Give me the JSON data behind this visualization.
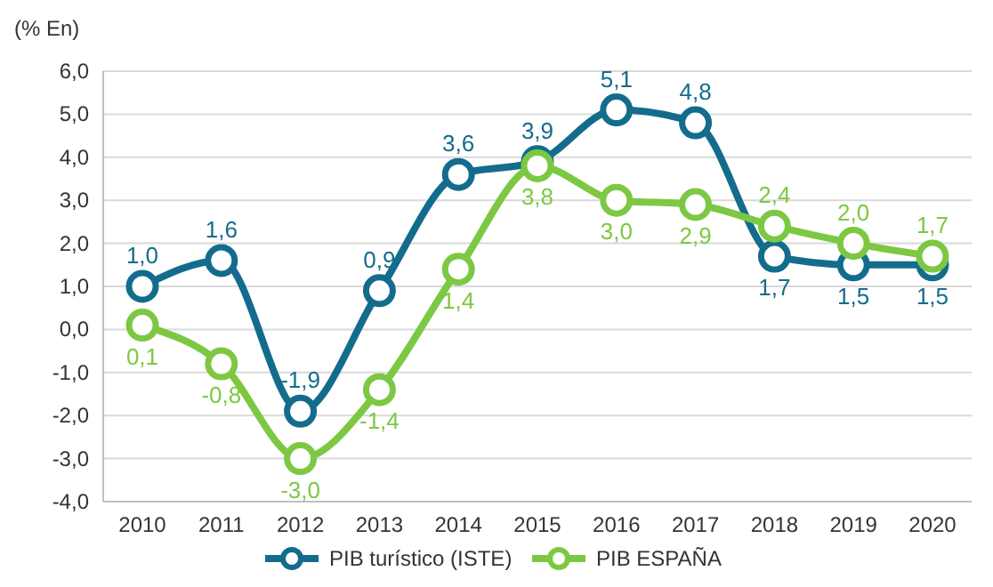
{
  "chart_data": {
    "type": "line",
    "ylabel": "(% En)",
    "categories": [
      "2010",
      "2011",
      "2012",
      "2013",
      "2014",
      "2015",
      "2016",
      "2017",
      "2018",
      "2019",
      "2020"
    ],
    "series": [
      {
        "name": "PIB turístico (ISTE)",
        "color": "#146c8c",
        "values": [
          1.0,
          1.6,
          -1.9,
          0.9,
          3.6,
          3.9,
          5.1,
          4.8,
          1.7,
          1.5,
          1.5
        ],
        "value_labels": [
          "1,0",
          "1,6",
          "-1,9",
          "0,9",
          "3,6",
          "3,9",
          "5,1",
          "4,8",
          "1,7",
          "1,5",
          "1,5"
        ]
      },
      {
        "name": "PIB ESPAÑA",
        "color": "#7dc843",
        "values": [
          0.1,
          -0.8,
          -3.0,
          -1.4,
          1.4,
          3.8,
          3.0,
          2.9,
          2.4,
          2.0,
          1.7
        ],
        "value_labels": [
          "0,1",
          "-0,8",
          "-3,0",
          "-1,4",
          "1,4",
          "3,8",
          "3,0",
          "2,9",
          "2,4",
          "2,0",
          "1,7"
        ]
      }
    ],
    "ylim": [
      -4,
      6
    ],
    "yticks": [
      {
        "value": -4,
        "label": "-4,0"
      },
      {
        "value": -3,
        "label": "-3,0"
      },
      {
        "value": -2,
        "label": "-2,0"
      },
      {
        "value": -1,
        "label": "-1,0"
      },
      {
        "value": 0,
        "label": "0,0"
      },
      {
        "value": 1,
        "label": "1,0"
      },
      {
        "value": 2,
        "label": "2,0"
      },
      {
        "value": 3,
        "label": "3,0"
      },
      {
        "value": 4,
        "label": "4,0"
      },
      {
        "value": 5,
        "label": "5,0"
      },
      {
        "value": 6,
        "label": "6,0"
      }
    ],
    "grid": "y",
    "legend": "bottom",
    "marker": "circle",
    "line_style": "solid"
  }
}
